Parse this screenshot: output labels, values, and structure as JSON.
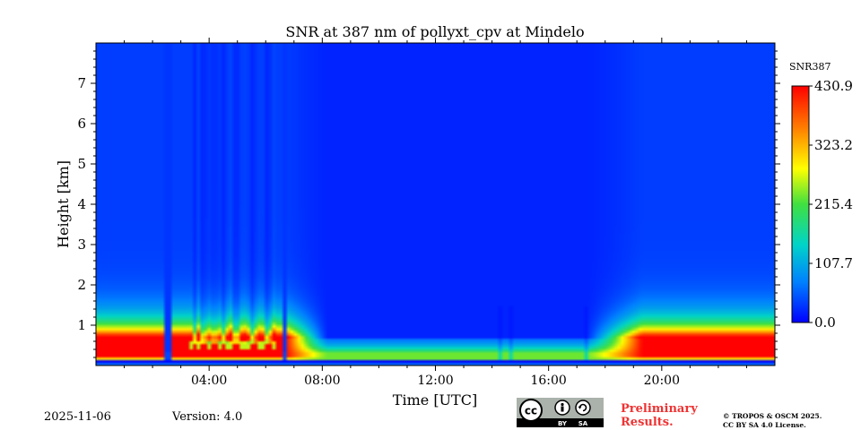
{
  "chart_data": {
    "type": "heatmap",
    "title": "SNR at 387 nm of pollyxt_cpv at Mindelo",
    "xlabel": "Time [UTC]",
    "ylabel": "Height [km]",
    "xlim_hours": [
      0,
      24
    ],
    "ylim_km": [
      0,
      8
    ],
    "x_tick_labels": [
      "04:00",
      "08:00",
      "12:00",
      "16:00",
      "20:00"
    ],
    "x_tick_hours": [
      4,
      8,
      12,
      16,
      20
    ],
    "y_tick_labels": [
      "1",
      "2",
      "3",
      "4",
      "5",
      "6",
      "7"
    ],
    "y_tick_values": [
      1,
      2,
      3,
      4,
      5,
      6,
      7
    ],
    "colorbar": {
      "label": "SNR387",
      "min": 0.0,
      "max": 430.9,
      "tick_labels": [
        "0.0",
        "107.7",
        "215.4",
        "323.2",
        "430.9"
      ],
      "tick_values": [
        0.0,
        107.7,
        215.4,
        323.2,
        430.9
      ],
      "colormap": [
        "#0000ff",
        "#0080ff",
        "#00d4c8",
        "#40e040",
        "#ffff00",
        "#ff8000",
        "#ff0000"
      ]
    },
    "features": {
      "night_high_snr_layer_km": [
        0.25,
        0.7
      ],
      "night_layer_peak_snr": 430.9,
      "day_background_snr": 20,
      "sunrise_transition_hours": [
        6.7,
        8.2
      ],
      "sunset_transition_hours": [
        17.3,
        19.3
      ],
      "data_gap_hours": [
        2.55,
        6.65
      ],
      "noisy_period_hours": [
        3.3,
        6.3
      ]
    }
  },
  "footer": {
    "date": "2025-11-06",
    "version": "Version: 4.0",
    "preliminary_line1": "Preliminary",
    "preliminary_line2": "Results.",
    "copyright_line1": "© TROPOS & OSCM 2025.",
    "copyright_line2": "CC BY SA 4.0 License.",
    "license_badge": {
      "cc": "cc",
      "by": "BY",
      "sa": "SA"
    }
  }
}
